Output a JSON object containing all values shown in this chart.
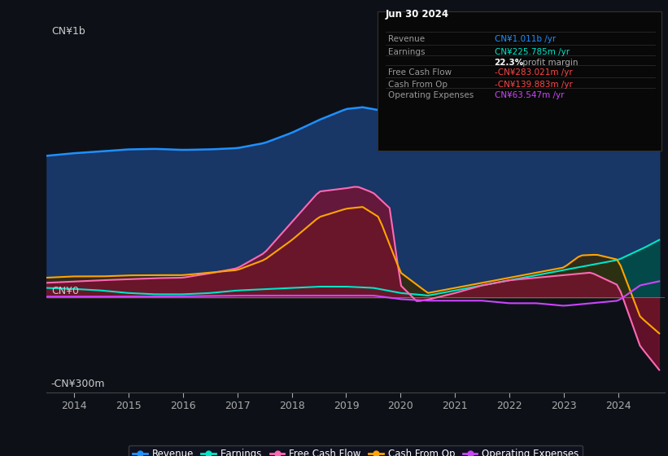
{
  "background_color": "#0d1117",
  "ylabel_top": "CN¥1b",
  "ylabel_zero": "CN¥0",
  "ylabel_bottom": "-CN¥300m",
  "xticks": [
    2014,
    2015,
    2016,
    2017,
    2018,
    2019,
    2020,
    2021,
    2022,
    2023,
    2024
  ],
  "series": {
    "revenue": {
      "color": "#1e90ff",
      "fill_color": "#1a3a6e",
      "label": "Revenue"
    },
    "earnings": {
      "color": "#00e5c8",
      "fill_color": "#004d44",
      "label": "Earnings"
    },
    "free_cash_flow": {
      "color": "#ff69b4",
      "fill_color": "#7a1030",
      "label": "Free Cash Flow"
    },
    "cash_from_op": {
      "color": "#ffa500",
      "fill_color": "#3a2800",
      "label": "Cash From Op"
    },
    "operating_expenses": {
      "color": "#cc44ff",
      "label": "Operating Expenses"
    }
  },
  "info_box": {
    "title": "Jun 30 2024",
    "rows": [
      {
        "label": "Revenue",
        "value": "CN¥1.011b /yr",
        "value_color": "#1e90ff"
      },
      {
        "label": "Earnings",
        "value": "CN¥225.785m /yr",
        "value_color": "#00e5c8"
      },
      {
        "label": "",
        "value": "22.3% profit margin",
        "value_color": "#ffffff",
        "bold_part": "22.3%"
      },
      {
        "label": "Free Cash Flow",
        "value": "-CN¥283.021m /yr",
        "value_color": "#ff4444"
      },
      {
        "label": "Cash From Op",
        "value": "-CN¥139.883m /yr",
        "value_color": "#ff4444"
      },
      {
        "label": "Operating Expenses",
        "value": "CN¥63.547m /yr",
        "value_color": "#cc44ff"
      }
    ]
  },
  "legend": [
    {
      "label": "Revenue",
      "color": "#1e90ff"
    },
    {
      "label": "Earnings",
      "color": "#00e5c8"
    },
    {
      "label": "Free Cash Flow",
      "color": "#ff69b4"
    },
    {
      "label": "Cash From Op",
      "color": "#ffa500"
    },
    {
      "label": "Operating Expenses",
      "color": "#cc44ff"
    }
  ]
}
